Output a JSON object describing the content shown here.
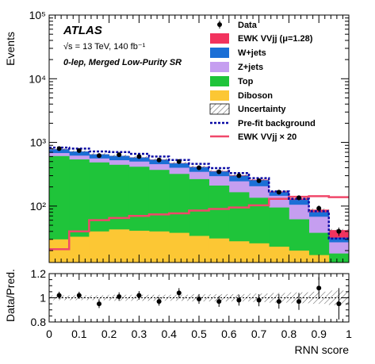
{
  "chart_data": [
    {
      "type": "stacked-histogram",
      "experiment_label": "ATLAS",
      "energy_lumi": "√s = 13 TeV, 140 fb⁻¹",
      "region": "0-lep, Merged Low-Purity SR",
      "ylabel": "Events",
      "yscale": "log",
      "ylim": [
        13,
        100000
      ],
      "y_ticks": [
        "10²",
        "10³",
        "10⁴",
        "10⁵"
      ],
      "y_tick_values": [
        100,
        1000,
        10000,
        100000
      ],
      "xlim": [
        0,
        1
      ],
      "bin_edges": [
        0,
        0.0667,
        0.1333,
        0.2,
        0.2667,
        0.3333,
        0.4,
        0.4667,
        0.5333,
        0.6,
        0.6667,
        0.7333,
        0.8,
        0.8667,
        0.9333,
        1.0
      ],
      "legend": {
        "data": "Data",
        "signal": "EWK VVjj (μ=1.28)",
        "wjets": "W+jets",
        "zjets": "Z+jets",
        "top": "Top",
        "diboson": "Diboson",
        "uncertainty": "Uncertainty",
        "prefit": "Pre-fit background",
        "signal_scaled": "EWK VVjj × 20"
      },
      "colors": {
        "signal": "#f2335e",
        "wjets": "#1b6fd6",
        "zjets": "#c59ef0",
        "top": "#1fc43a",
        "diboson": "#fcc734",
        "prefit": "#0a0aa5",
        "signal_scaled": "#f0486a"
      },
      "stack": {
        "diboson": [
          30,
          33,
          40,
          43,
          41,
          40,
          38,
          34,
          31,
          28,
          26,
          23,
          20,
          17,
          13
        ],
        "top": [
          610,
          540,
          485,
          445,
          415,
          370,
          320,
          265,
          210,
          165,
          135,
          95,
          62,
          38,
          18
        ],
        "zjets": [
          680,
          620,
          560,
          525,
          500,
          455,
          400,
          345,
          295,
          245,
          205,
          145,
          105,
          68,
          27
        ],
        "wjets": [
          780,
          720,
          650,
          615,
          580,
          535,
          470,
          410,
          350,
          300,
          255,
          165,
          125,
          80,
          32
        ],
        "signal": [
          782,
          722,
          652,
          617,
          583,
          538,
          474,
          414,
          355,
          305,
          260,
          170,
          132,
          88,
          42
        ]
      },
      "prefit_background": [
        830,
        800,
        720,
        705,
        660,
        600,
        530,
        460,
        395,
        330,
        275,
        170,
        130,
        83,
        31
      ],
      "signal_x20": [
        21,
        40,
        60,
        65,
        70,
        74,
        77,
        85,
        90,
        95,
        103,
        130,
        140,
        143,
        138
      ],
      "data": {
        "x": [
          0.0333,
          0.1,
          0.1667,
          0.2333,
          0.3,
          0.3667,
          0.4333,
          0.5,
          0.5667,
          0.6333,
          0.7,
          0.7667,
          0.8333,
          0.9,
          0.9667
        ],
        "y": [
          800,
          745,
          620,
          640,
          600,
          530,
          500,
          400,
          345,
          300,
          250,
          165,
          135,
          92,
          40
        ],
        "err": [
          28,
          27,
          25,
          25,
          24,
          23,
          22,
          20,
          19,
          17,
          16,
          13,
          12,
          10,
          6
        ]
      }
    },
    {
      "type": "ratio",
      "ylabel": "Data/Pred.",
      "xlabel": "RNN score",
      "ylim": [
        0.8,
        1.2
      ],
      "y_ticks": [
        "0.8",
        "1",
        "1.2"
      ],
      "y_tick_values": [
        0.8,
        1.0,
        1.2
      ],
      "x_ticks": [
        "0",
        "0.1",
        "0.2",
        "0.3",
        "0.4",
        "0.5",
        "0.6",
        "0.7",
        "0.8",
        "0.9",
        "1"
      ],
      "x_tick_values": [
        0,
        0.1,
        0.2,
        0.3,
        0.4,
        0.5,
        0.6,
        0.7,
        0.8,
        0.9,
        1.0
      ],
      "x": [
        0.0333,
        0.1,
        0.1667,
        0.2333,
        0.3,
        0.3667,
        0.4333,
        0.5,
        0.5667,
        0.6333,
        0.7,
        0.7667,
        0.8333,
        0.9,
        0.9667
      ],
      "ratio": [
        1.02,
        1.02,
        0.95,
        1.01,
        1.02,
        0.97,
        1.04,
        0.99,
        0.97,
        0.98,
        0.98,
        0.97,
        0.97,
        1.08,
        0.95
      ],
      "err": [
        0.03,
        0.03,
        0.035,
        0.035,
        0.035,
        0.035,
        0.04,
        0.04,
        0.045,
        0.045,
        0.05,
        0.06,
        0.07,
        0.09,
        0.13
      ],
      "unc_band": [
        0.02,
        0.02,
        0.02,
        0.025,
        0.025,
        0.025,
        0.025,
        0.03,
        0.03,
        0.03,
        0.035,
        0.04,
        0.045,
        0.05,
        0.06
      ]
    }
  ]
}
